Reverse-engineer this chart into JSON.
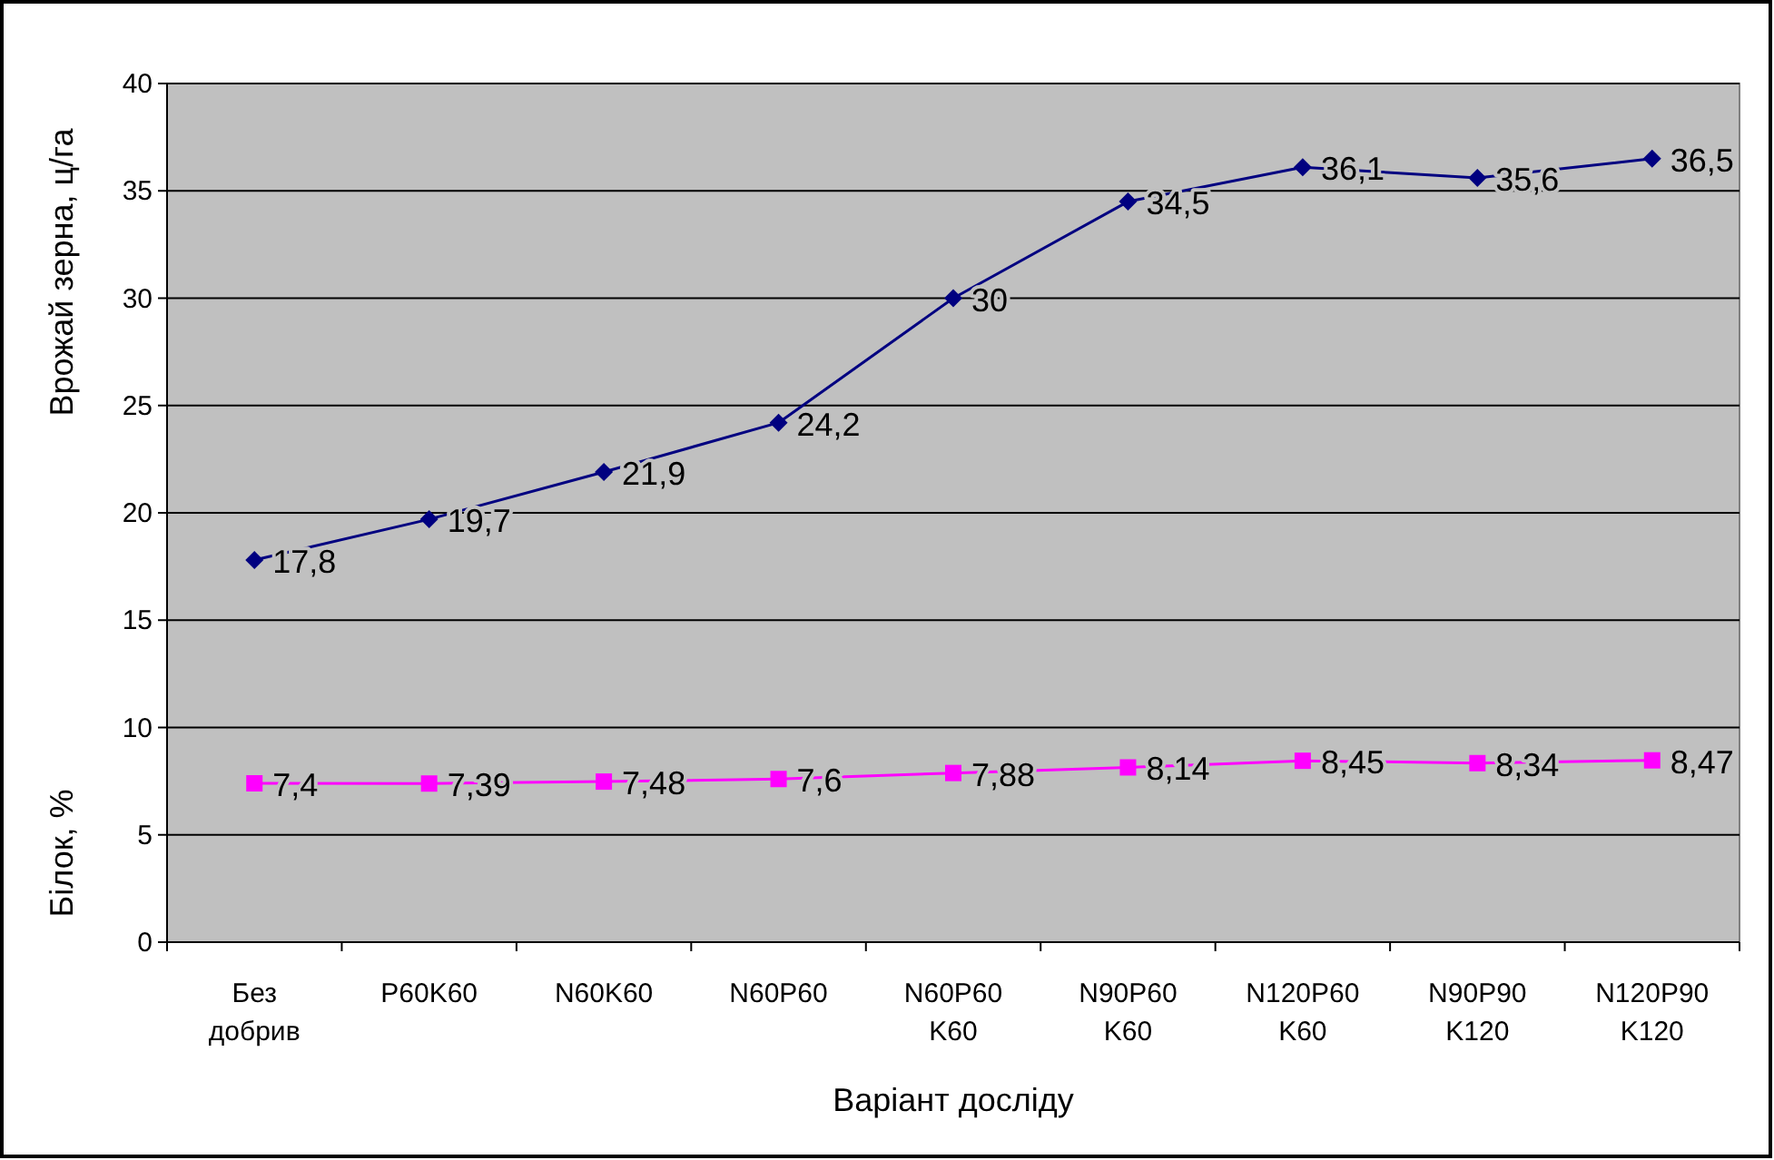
{
  "chart_data": {
    "type": "line",
    "xlabel": "Варіант досліду",
    "ylabel": "Врожай зерна, ц/га",
    "y2label": "Білок, %",
    "categories": [
      "Без\nдобрив",
      "P60K60",
      "N60K60",
      "N60P60",
      "N60P60\nK60",
      "N90P60\nK60",
      "N120P60\nK60",
      "N90P90\nK120",
      "N120P90\nK120"
    ],
    "series": [
      {
        "color": "#000080",
        "marker": "diamond",
        "values": [
          17.8,
          19.7,
          21.9,
          24.2,
          30,
          34.5,
          36.1,
          35.6,
          36.5
        ],
        "value_labels": [
          "17,8",
          "19,7",
          "21,9",
          "24,2",
          "30",
          "34,5",
          "36,1",
          "35,6",
          "36,5"
        ]
      },
      {
        "color": "#ff00ff",
        "marker": "square",
        "values": [
          7.4,
          7.39,
          7.48,
          7.6,
          7.88,
          8.14,
          8.45,
          8.34,
          8.47
        ],
        "value_labels": [
          "7,4",
          "7,39",
          "7,48",
          "7,6",
          "7,88",
          "8,14",
          "8,45",
          "8,34",
          "8,47"
        ]
      }
    ],
    "ylim": [
      0,
      40
    ],
    "yticks": [
      0,
      5,
      10,
      15,
      20,
      25,
      30,
      35,
      40
    ],
    "grid": "y"
  }
}
